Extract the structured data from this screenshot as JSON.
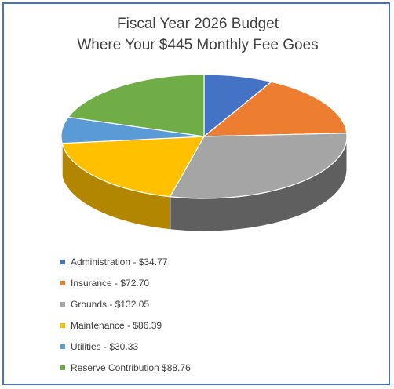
{
  "chart_data": {
    "type": "pie",
    "title_lines": [
      "Fiscal Year 2026 Budget",
      "Where Your $445 Monthly Fee Goes"
    ],
    "slices": [
      {
        "label": "Administration - $34.77",
        "value": 34.77,
        "color": "#4472c4",
        "side": "#2f5597"
      },
      {
        "label": "Insurance - $72.70",
        "value": 72.7,
        "color": "#ed7d31",
        "side": "#b55a1f"
      },
      {
        "label": "Grounds - $132.05",
        "value": 132.05,
        "color": "#a5a5a5",
        "side": "#5f5f5f"
      },
      {
        "label": "Maintenance - $86.39",
        "value": 86.39,
        "color": "#ffc000",
        "side": "#b38600"
      },
      {
        "label": "Utilities - $30.33",
        "value": 30.33,
        "color": "#5b9bd5",
        "side": "#3a74a8"
      },
      {
        "label": "Reserve Contribution $88.76",
        "value": 88.76,
        "color": "#70ad47",
        "side": "#4a7a2c"
      }
    ],
    "legend_position": "bottom-left",
    "style": "3d-pie"
  }
}
